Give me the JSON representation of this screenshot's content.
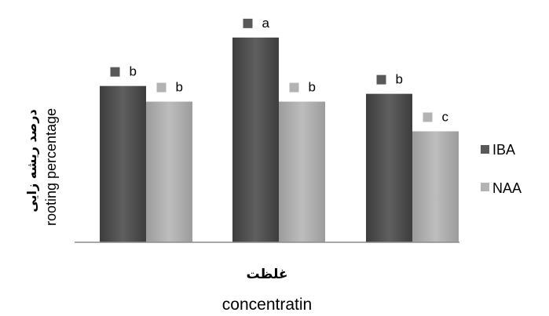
{
  "chart_data": {
    "type": "bar",
    "categories": [
      "",
      "",
      ""
    ],
    "series": [
      {
        "name": "IBA",
        "color": "#595959",
        "values": [
          100,
          131,
          95
        ],
        "labels": [
          "b",
          "a",
          "b"
        ]
      },
      {
        "name": "NAA",
        "color": "#b3b3b3",
        "values": [
          90,
          90,
          71
        ],
        "labels": [
          "b",
          "b",
          "c"
        ]
      }
    ],
    "ylim": [
      0,
      150
    ],
    "xlabel_fa": "غلظت",
    "xlabel": "concentratin",
    "ylabel_fa": "درصد ریشه زایی",
    "ylabel": "rooting percentage",
    "grid": false,
    "legend_position": "right"
  }
}
